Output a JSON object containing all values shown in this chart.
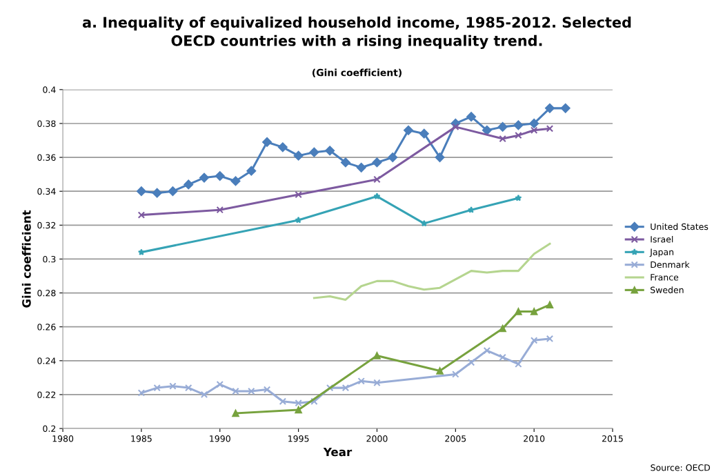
{
  "chart_data": {
    "type": "line",
    "title": "a. Inequality of equivalized household income, 1985-2012. Selected\nOECD countries with a rising inequality trend.",
    "subtitle": "(Gini coefficient)",
    "xlabel": "Year",
    "ylabel": "Gini coefficient",
    "annotations": [
      "Source: OECD"
    ],
    "xlim": [
      1980,
      2015
    ],
    "xticks": [
      1980,
      1985,
      1990,
      1995,
      2000,
      2005,
      2010,
      2015
    ],
    "ylim": [
      0.2,
      0.4
    ],
    "yticks": [
      0.2,
      0.22,
      0.24,
      0.26,
      0.28,
      0.3,
      0.32,
      0.34,
      0.36,
      0.38,
      0.4
    ],
    "grid": "y",
    "legend": "right",
    "series": [
      {
        "name": "United States",
        "color": "#4a7ebb",
        "marker": "diamond",
        "x": [
          1985,
          1986,
          1987,
          1988,
          1989,
          1990,
          1991,
          1992,
          1993,
          1994,
          1995,
          1996,
          1997,
          1998,
          1999,
          2000,
          2001,
          2002,
          2003,
          2004,
          2005,
          2006,
          2007,
          2008,
          2009,
          2010,
          2011,
          2012
        ],
        "values": [
          0.34,
          0.339,
          0.34,
          0.344,
          0.348,
          0.349,
          0.346,
          0.352,
          0.369,
          0.366,
          0.361,
          0.363,
          0.364,
          0.357,
          0.354,
          0.357,
          0.36,
          0.376,
          0.374,
          0.36,
          0.38,
          0.384,
          0.376,
          0.378,
          0.379,
          0.38,
          0.389,
          0.389
        ]
      },
      {
        "name": "Israel",
        "color": "#7d5aa0",
        "marker": "cross",
        "x": [
          1985,
          1990,
          1995,
          2000,
          2005,
          2008,
          2009,
          2010,
          2011
        ],
        "values": [
          0.326,
          0.329,
          0.338,
          0.347,
          0.378,
          0.371,
          0.373,
          0.376,
          0.377
        ]
      },
      {
        "name": "Japan",
        "color": "#35a3b5",
        "marker": "star",
        "x": [
          1985,
          1995,
          2000,
          2003,
          2006,
          2009
        ],
        "values": [
          0.304,
          0.323,
          0.337,
          0.321,
          0.329,
          0.336
        ]
      },
      {
        "name": "Denmark",
        "color": "#98acd6",
        "marker": "cross",
        "x": [
          1985,
          1986,
          1987,
          1988,
          1989,
          1990,
          1991,
          1992,
          1993,
          1994,
          1995,
          1996,
          1997,
          1998,
          1999,
          2000,
          2005,
          2006,
          2007,
          2008,
          2009,
          2010,
          2011
        ],
        "values": [
          0.221,
          0.224,
          0.225,
          0.224,
          0.22,
          0.226,
          0.222,
          0.222,
          0.223,
          0.216,
          0.215,
          0.216,
          0.224,
          0.224,
          0.228,
          0.227,
          0.232,
          0.239,
          0.246,
          0.242,
          0.238,
          0.252,
          0.253
        ]
      },
      {
        "name": "France",
        "color": "#b5d58f",
        "marker": "none",
        "x": [
          1996,
          1997,
          1998,
          1999,
          2000,
          2001,
          2002,
          2003,
          2004,
          2005,
          2006,
          2007,
          2008,
          2009,
          2010,
          2011
        ],
        "values": [
          0.277,
          0.278,
          0.276,
          0.284,
          0.287,
          0.287,
          0.284,
          0.282,
          0.283,
          0.288,
          0.293,
          0.292,
          0.293,
          0.293,
          0.303,
          0.309
        ]
      },
      {
        "name": "Sweden",
        "color": "#77a23e",
        "marker": "triangle",
        "x": [
          1991,
          1995,
          2000,
          2004,
          2008,
          2009,
          2010,
          2011
        ],
        "values": [
          0.209,
          0.211,
          0.243,
          0.234,
          0.259,
          0.269,
          0.269,
          0.273
        ]
      }
    ]
  }
}
